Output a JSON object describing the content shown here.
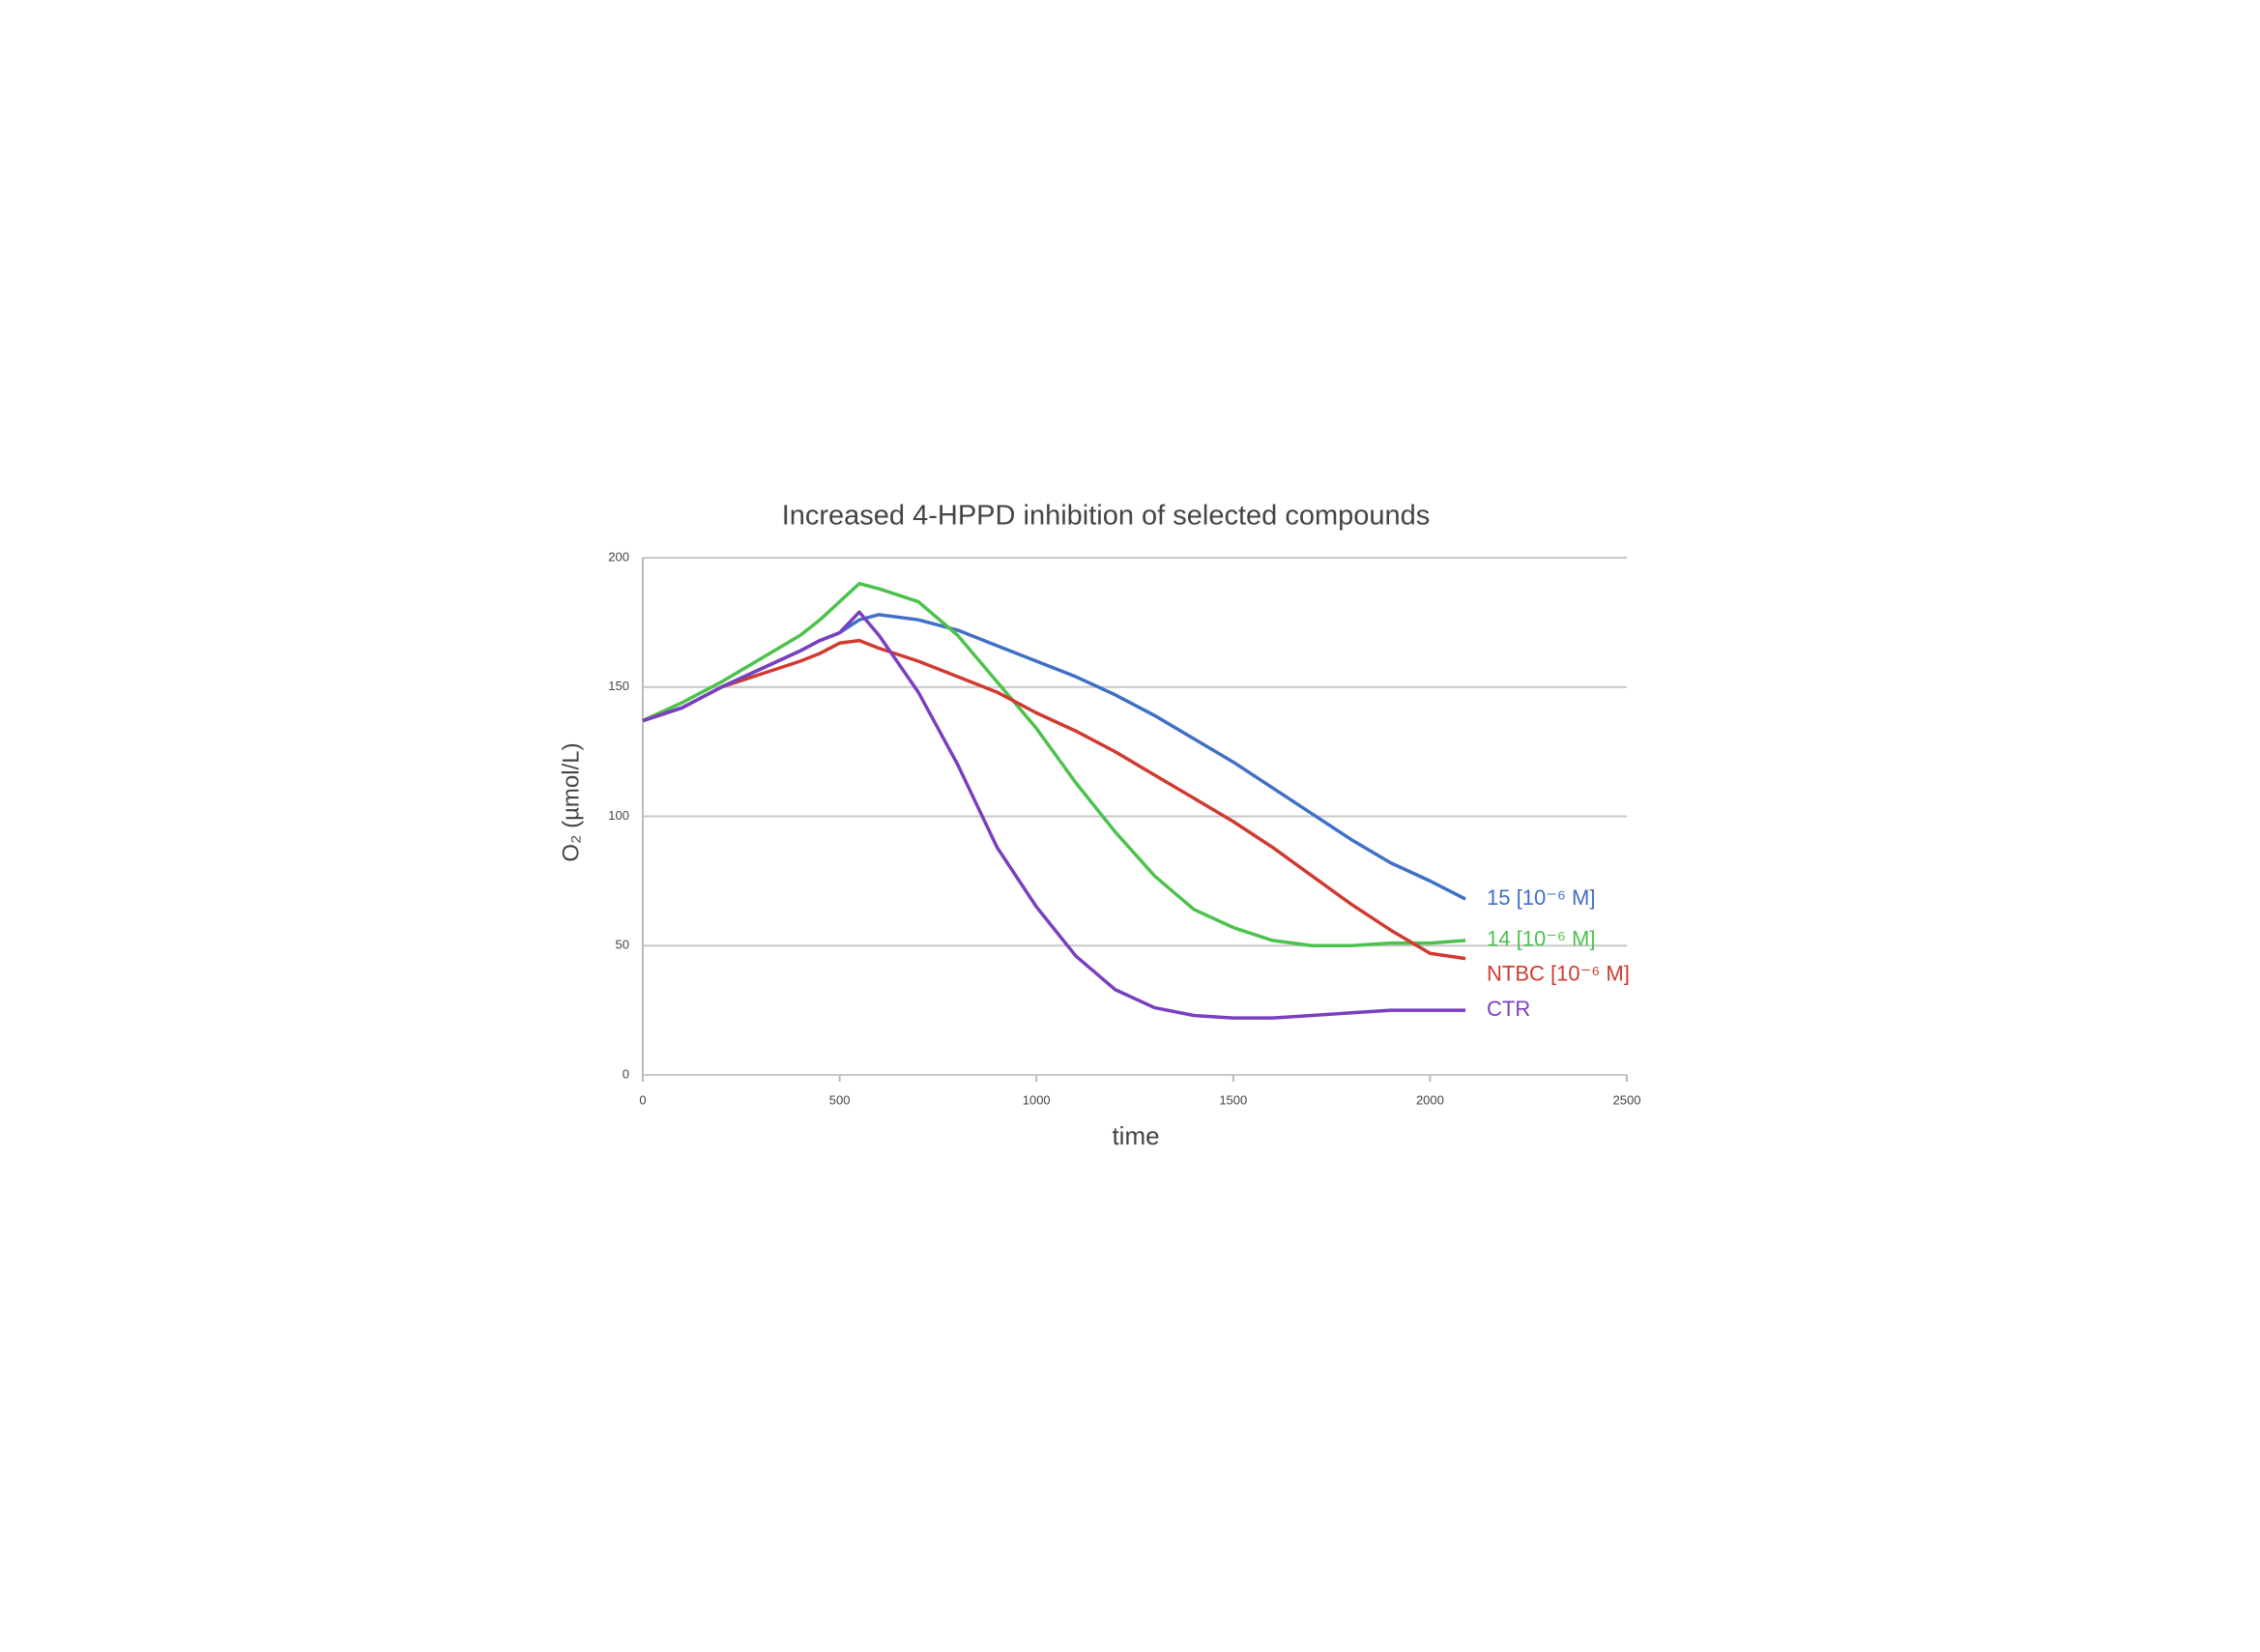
{
  "chart_data": {
    "type": "line",
    "title": "Increased 4-HPPD inhibition of selected compounds",
    "x_label": "time",
    "y_label": "O₂ (µmol/L)",
    "x": [
      0,
      100,
      200,
      300,
      400,
      450,
      500,
      550,
      600,
      700,
      800,
      900,
      1000,
      1100,
      1200,
      1300,
      1400,
      1500,
      1600,
      1700,
      1800,
      1900,
      2000,
      2090
    ],
    "series": [
      {
        "name": "15 [10⁻⁶ M]",
        "color": "#3f6fc6",
        "values": [
          137,
          142,
          150,
          157,
          164,
          168,
          171,
          176,
          178,
          176,
          172,
          166,
          160,
          154,
          147,
          139,
          130,
          121,
          111,
          101,
          91,
          82,
          75,
          68
        ]
      },
      {
        "name": "14 [10⁻⁶ M]",
        "color": "#4cc24c",
        "values": [
          137,
          144,
          152,
          161,
          170,
          176,
          183,
          190,
          188,
          183,
          170,
          152,
          134,
          113,
          94,
          77,
          64,
          57,
          52,
          50,
          50,
          51,
          51,
          52
        ]
      },
      {
        "name": "NTBC [10⁻⁶ M]",
        "color": "#d03a30",
        "values": [
          137,
          142,
          150,
          155,
          160,
          163,
          167,
          168,
          165,
          160,
          154,
          148,
          140,
          133,
          125,
          116,
          107,
          98,
          88,
          77,
          66,
          56,
          47,
          45
        ]
      },
      {
        "name": "CTR",
        "color": "#7a3fbf",
        "values": [
          137,
          142,
          150,
          157,
          164,
          168,
          171,
          179,
          170,
          148,
          120,
          88,
          65,
          46,
          33,
          26,
          23,
          22,
          22,
          23,
          24,
          25,
          25,
          25
        ]
      }
    ],
    "xlim": [
      0,
      2500
    ],
    "xticks": [
      0,
      500,
      1000,
      1500,
      2000,
      2500
    ],
    "ylim": [
      0,
      200
    ],
    "yticks": [
      0,
      50,
      100,
      150,
      200
    ],
    "grid": true
  }
}
